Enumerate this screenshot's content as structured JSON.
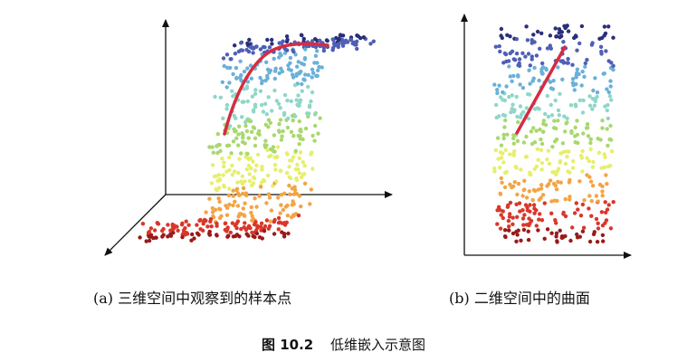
{
  "panel_a": {
    "caption": "(a) 三维空间中观察到的样本点"
  },
  "panel_b": {
    "caption": "(b) 二维空间中的曲面"
  },
  "figure": {
    "number": "图 10.2",
    "title": "低维嵌入示意图"
  },
  "colors": {
    "curve": "#d62c40",
    "axis": "#111111",
    "palette": [
      "#2a2f7a",
      "#4f5fb5",
      "#6bb0d8",
      "#8fd7c8",
      "#a8d86e",
      "#e6ef6c",
      "#f3a445",
      "#d9372a",
      "#9a1a1a"
    ]
  }
}
